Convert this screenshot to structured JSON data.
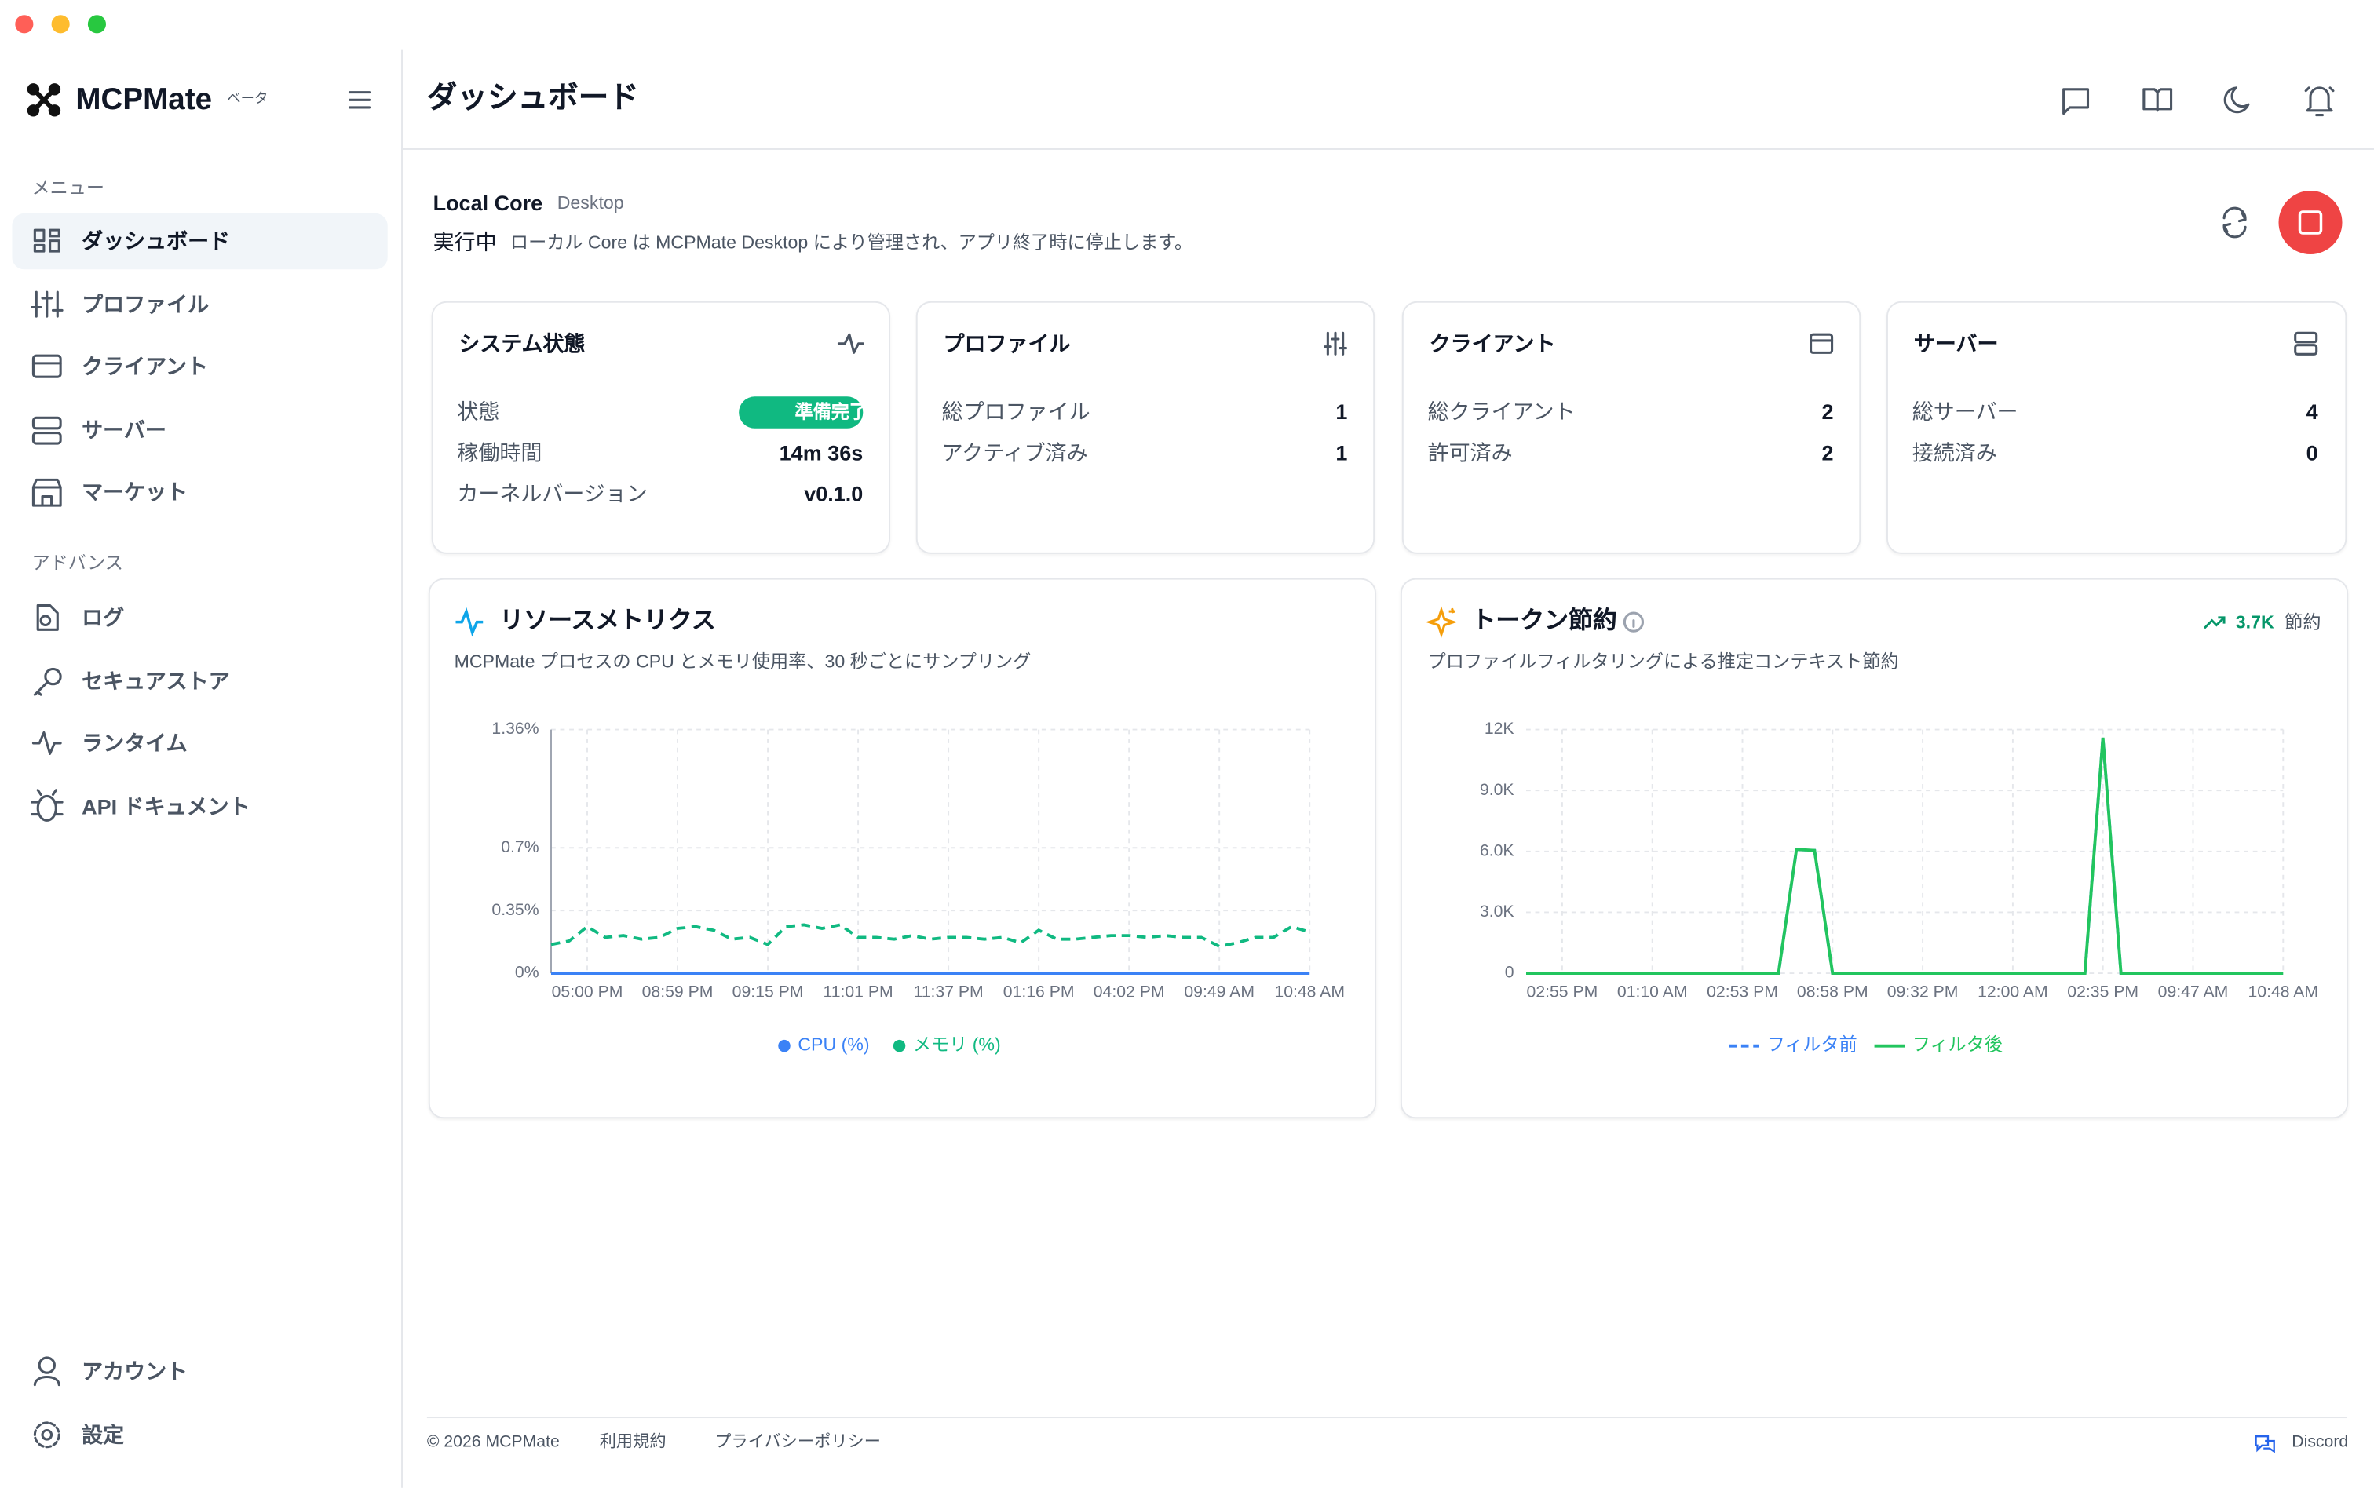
{
  "sidebar": {
    "brand": "MCPMate",
    "badge": "ベータ",
    "menu_heading": "メニュー",
    "menu": [
      "ダッシュボード",
      "プロファイル",
      "クライアント",
      "サーバー",
      "マーケット"
    ],
    "advanced_heading": "アドバンス",
    "advanced": [
      "ログ",
      "セキュアストア",
      "ランタイム",
      "API ドキュメント"
    ],
    "bottom": [
      "アカウント",
      "設定"
    ]
  },
  "header": {
    "title": "ダッシュボード"
  },
  "core": {
    "name": "Local Core",
    "tag": "Desktop",
    "status": "実行中",
    "description": "ローカル Core は MCPMate Desktop により管理され、アプリ終了時に停止します。"
  },
  "cards": [
    {
      "title": "システム状態",
      "rows": [
        [
          "状態",
          "準備完了"
        ],
        [
          "稼働時間",
          "14m 36s"
        ],
        [
          "カーネルバージョン",
          "v0.1.0"
        ]
      ]
    },
    {
      "title": "プロファイル",
      "rows": [
        [
          "総プロファイル",
          "1"
        ],
        [
          "アクティブ済み",
          "1"
        ]
      ]
    },
    {
      "title": "クライアント",
      "rows": [
        [
          "総クライアント",
          "2"
        ],
        [
          "許可済み",
          "2"
        ]
      ]
    },
    {
      "title": "サーバー",
      "rows": [
        [
          "総サーバー",
          "4"
        ],
        [
          "接続済み",
          "0"
        ]
      ]
    }
  ],
  "resource_metrics": {
    "title": "リソースメトリクス",
    "subtitle": "MCPMate プロセスの CPU とメモリ使用率、30 秒ごとにサンプリング",
    "chart": {
      "type": "line",
      "legend_marker": "dot",
      "categories": [
        null,
        null,
        "05:00 PM",
        null,
        null,
        null,
        null,
        "08:59 PM",
        null,
        null,
        null,
        null,
        "09:15 PM",
        null,
        null,
        null,
        null,
        "11:01 PM",
        null,
        null,
        null,
        null,
        "11:37 PM",
        null,
        null,
        null,
        null,
        "01:16 PM",
        null,
        null,
        null,
        null,
        "04:02 PM",
        null,
        null,
        null,
        null,
        "09:49 AM",
        null,
        null,
        null,
        null,
        "10:48 AM"
      ],
      "series": [
        {
          "name": "CPU (%)",
          "color": "#3b82f6",
          "line_style": "solid",
          "values": [
            0,
            0,
            0,
            0,
            0,
            0,
            0,
            0,
            0,
            0,
            0,
            0,
            0,
            0,
            0,
            0,
            0,
            0,
            0,
            0,
            0,
            0,
            0,
            0,
            0,
            0,
            0,
            0,
            0,
            0,
            0,
            0,
            0,
            0,
            0,
            0,
            0,
            0,
            0,
            0,
            0,
            0,
            0
          ]
        },
        {
          "name": "メモリ (%)",
          "color": "#10b981",
          "line_style": "dashed",
          "values": [
            0.16,
            0.18,
            0.26,
            0.2,
            0.21,
            0.19,
            0.2,
            0.25,
            0.26,
            0.24,
            0.19,
            0.2,
            0.16,
            0.26,
            0.27,
            0.25,
            0.27,
            0.2,
            0.2,
            0.19,
            0.21,
            0.19,
            0.2,
            0.2,
            0.19,
            0.2,
            0.17,
            0.24,
            0.19,
            0.19,
            0.2,
            0.21,
            0.21,
            0.2,
            0.21,
            0.2,
            0.2,
            0.15,
            0.17,
            0.2,
            0.2,
            0.26,
            0.23
          ]
        }
      ],
      "ylim": [
        0,
        1.36
      ],
      "yticks": [
        {
          "value": 0,
          "label": "0%"
        },
        {
          "value": 0.35,
          "label": "0.35%"
        },
        {
          "value": 0.7,
          "label": "0.7%"
        },
        {
          "value": 1.36,
          "label": "1.36%"
        }
      ],
      "grid": true
    }
  },
  "token_savings": {
    "title": "トークン節約",
    "saved": "3.7K",
    "saved_suffix": "節約",
    "subtitle": "プロファイルフィルタリングによる推定コンテキスト節約",
    "chart": {
      "type": "line",
      "legend_marker": "line",
      "categories": [
        null,
        null,
        "02:55 PM",
        null,
        null,
        null,
        null,
        "01:10 AM",
        null,
        null,
        null,
        null,
        "02:53 PM",
        null,
        null,
        null,
        null,
        "08:58 PM",
        null,
        null,
        null,
        null,
        "09:32 PM",
        null,
        null,
        null,
        null,
        "12:00 AM",
        null,
        null,
        null,
        null,
        "02:35 PM",
        null,
        null,
        null,
        null,
        "09:47 AM",
        null,
        null,
        null,
        null,
        "10:48 AM"
      ],
      "series": [
        {
          "name": "フィルタ前",
          "color": "#3b82f6",
          "line_style": "dashed",
          "values": [
            0,
            0,
            0,
            0,
            0,
            0,
            0,
            0,
            0,
            0,
            0,
            0,
            0,
            0,
            0,
            6100,
            6050,
            0,
            0,
            0,
            0,
            0,
            0,
            0,
            0,
            0,
            0,
            0,
            0,
            0,
            0,
            0,
            11600,
            0,
            0,
            0,
            0,
            0,
            0,
            0,
            0,
            0,
            0
          ]
        },
        {
          "name": "フィルタ後",
          "color": "#22c55e",
          "line_style": "solid",
          "values": [
            0,
            0,
            0,
            0,
            0,
            0,
            0,
            0,
            0,
            0,
            0,
            0,
            0,
            0,
            0,
            6100,
            6050,
            0,
            0,
            0,
            0,
            0,
            0,
            0,
            0,
            0,
            0,
            0,
            0,
            0,
            0,
            0,
            11600,
            0,
            0,
            0,
            0,
            0,
            0,
            0,
            0,
            0,
            0
          ]
        }
      ],
      "ylim": [
        0,
        12000
      ],
      "yticks": [
        0,
        {
          "value": 3000,
          "label": "3.0K"
        },
        {
          "value": 6000,
          "label": "6.0K"
        },
        {
          "value": 9000,
          "label": "9.0K"
        },
        {
          "value": 12000,
          "label": "12K"
        }
      ],
      "grid": true
    }
  },
  "footer": {
    "copyright": "© 2026 MCPMate",
    "links": [
      "利用規約",
      "プライバシーポリシー"
    ],
    "discord": "Discord"
  }
}
